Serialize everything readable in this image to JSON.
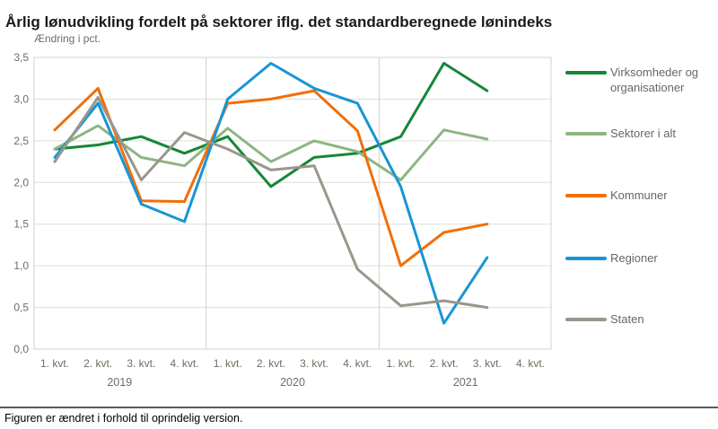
{
  "chart_data": {
    "type": "line",
    "title": "Årlig lønudvikling fordelt på sektorer iflg. det standardberegnede lønindeks",
    "ylabel": "Ændring i pct.",
    "ylim": [
      0,
      3.5
    ],
    "grid": true,
    "legend_position": "right",
    "categories": [
      "1. kvt.",
      "2. kvt.",
      "3. kvt.",
      "4. kvt.",
      "1. kvt.",
      "2. kvt.",
      "3. kvt.",
      "4. kvt.",
      "1. kvt.",
      "2. kvt.",
      "3. kvt.",
      "4. kvt."
    ],
    "year_labels": [
      {
        "label": "2019",
        "center_index": 1.5
      },
      {
        "label": "2020",
        "center_index": 5.5
      },
      {
        "label": "2021",
        "center_index": 9.5
      }
    ],
    "year_divider_indices": [
      3.5,
      7.5
    ],
    "yticks": [
      {
        "value": 3.5,
        "label": "3,5"
      },
      {
        "value": 3.0,
        "label": "3,0"
      },
      {
        "value": 2.5,
        "label": "2,5"
      },
      {
        "value": 2.0,
        "label": "2,0"
      },
      {
        "value": 1.5,
        "label": "1,5"
      },
      {
        "value": 1.0,
        "label": "1,0"
      },
      {
        "value": 0.5,
        "label": "0,5"
      },
      {
        "value": 0.0,
        "label": "0,0"
      }
    ],
    "series": [
      {
        "name": "Virksomheder og organisationer",
        "color": "#148737",
        "values": [
          2.4,
          2.45,
          2.55,
          2.35,
          2.55,
          1.95,
          2.3,
          2.35,
          2.55,
          3.43,
          3.1,
          null
        ]
      },
      {
        "name": "Sektorer i alt",
        "color": "#8DB582",
        "values": [
          2.4,
          2.68,
          2.3,
          2.2,
          2.65,
          2.25,
          2.5,
          2.37,
          2.03,
          2.63,
          2.52,
          null
        ]
      },
      {
        "name": "Kommuner",
        "color": "#F06F0B",
        "values": [
          2.63,
          3.13,
          1.78,
          1.77,
          2.95,
          3.0,
          3.1,
          2.62,
          1.0,
          1.4,
          1.5,
          null
        ]
      },
      {
        "name": "Regioner",
        "color": "#1795D6",
        "values": [
          2.3,
          2.95,
          1.74,
          1.53,
          3.0,
          3.43,
          3.13,
          2.95,
          1.95,
          0.31,
          1.1,
          null
        ]
      },
      {
        "name": "Staten",
        "color": "#9B968A",
        "values": [
          2.25,
          3.02,
          2.03,
          2.6,
          2.4,
          2.15,
          2.2,
          0.96,
          0.52,
          0.58,
          0.5,
          null
        ]
      }
    ],
    "style": {
      "axis_text_color": "#716c60",
      "grid_color": "#deddd6",
      "border_color": "#d2d1ca",
      "line_width": 3
    }
  },
  "footer": {
    "note": "Figuren er ændret i forhold til oprindelig version."
  }
}
